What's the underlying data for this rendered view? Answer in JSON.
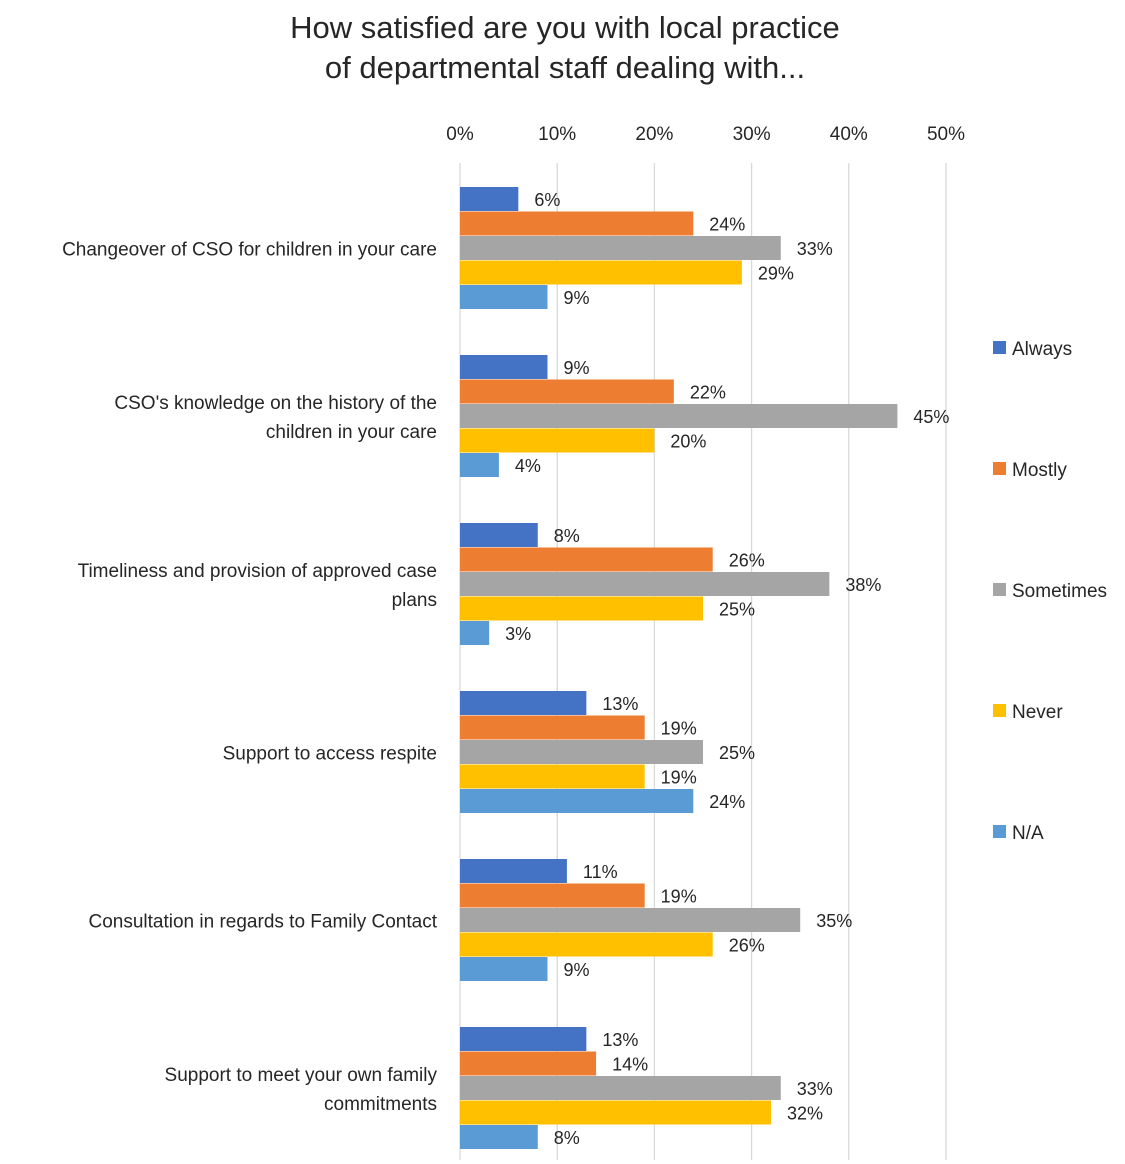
{
  "chart_data": {
    "type": "bar",
    "orientation": "horizontal",
    "title_lines": [
      "How satisfied are you with local practice",
      "of departmental staff dealing with..."
    ],
    "categories": [
      [
        "Changeover of CSO for children in your care"
      ],
      [
        "CSO's knowledge on the history of the",
        "children in your care"
      ],
      [
        "Timeliness and provision of approved case",
        "plans"
      ],
      [
        "Support to access respite"
      ],
      [
        "Consultation in regards to Family Contact"
      ],
      [
        "Support to meet your own family",
        "commitments"
      ]
    ],
    "series": [
      {
        "name": "Always",
        "color": "#4472C4",
        "values": [
          6,
          9,
          8,
          13,
          11,
          13
        ]
      },
      {
        "name": "Mostly",
        "color": "#ED7D31",
        "values": [
          24,
          22,
          26,
          19,
          19,
          14
        ]
      },
      {
        "name": "Sometimes",
        "color": "#A5A5A5",
        "values": [
          33,
          45,
          38,
          25,
          35,
          33
        ]
      },
      {
        "name": "Never",
        "color": "#FFC000",
        "values": [
          29,
          20,
          25,
          19,
          26,
          32
        ]
      },
      {
        "name": "N/A",
        "color": "#5B9BD5",
        "values": [
          9,
          4,
          3,
          24,
          9,
          8
        ]
      }
    ],
    "xlim": [
      0,
      50
    ],
    "xticks": [
      0,
      10,
      20,
      30,
      40,
      50
    ],
    "tick_suffix": "%",
    "value_suffix": "%",
    "axis_position": "top",
    "grid": true,
    "legend_position": "right"
  }
}
